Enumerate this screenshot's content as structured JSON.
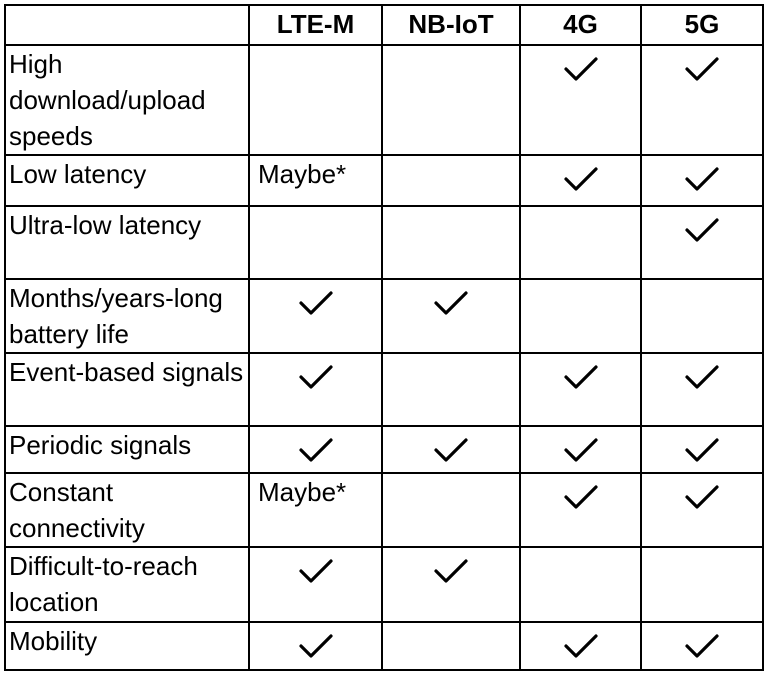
{
  "table": {
    "columns": [
      "LTE-M",
      "NB-IoT",
      "4G",
      "5G"
    ],
    "rows": [
      {
        "label": "High download/upload speeds",
        "cells": [
          false,
          false,
          true,
          true
        ]
      },
      {
        "label": "Low latency",
        "cells": [
          "Maybe*",
          false,
          true,
          true
        ]
      },
      {
        "label": "Ultra-low latency",
        "cells": [
          false,
          false,
          false,
          true
        ]
      },
      {
        "label": "Months/years-long battery life",
        "cells": [
          true,
          true,
          false,
          false
        ]
      },
      {
        "label": "Event-based signals",
        "cells": [
          true,
          false,
          true,
          true
        ]
      },
      {
        "label": "Periodic signals",
        "cells": [
          true,
          true,
          true,
          true
        ]
      },
      {
        "label": "Constant connectivity",
        "cells": [
          "Maybe*",
          false,
          true,
          true
        ]
      },
      {
        "label": "Difficult-to-reach location",
        "cells": [
          true,
          true,
          false,
          false
        ]
      },
      {
        "label": "Mobility",
        "cells": [
          true,
          false,
          true,
          true
        ]
      }
    ]
  }
}
